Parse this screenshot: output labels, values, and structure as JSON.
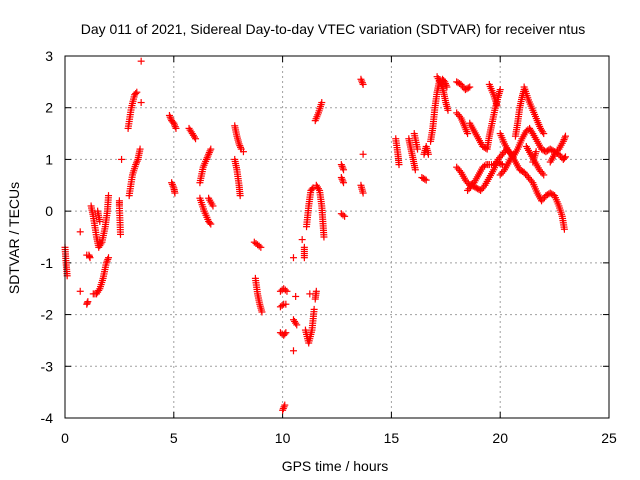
{
  "chart_data": {
    "type": "scatter",
    "title": "Day 011 of 2021, Sidereal Day-to-day VTEC variation (SDTVAR) for receiver ntus",
    "xlabel": "GPS time / hours",
    "ylabel": "SDTVAR / TECUs",
    "xlim": [
      0,
      25
    ],
    "ylim": [
      -4,
      3
    ],
    "xticks": [
      0,
      5,
      10,
      15,
      20,
      25
    ],
    "yticks": [
      -4,
      -3,
      -2,
      -1,
      0,
      1,
      2,
      3
    ],
    "xtick_labels": [
      "0",
      "5",
      "10",
      "15",
      "20",
      "25"
    ],
    "ytick_labels": [
      "-4",
      "-3",
      "-2",
      "-1",
      "0",
      "1",
      "2",
      "3"
    ],
    "grid": true,
    "marker": "+",
    "color": "#ff0000",
    "series": [
      {
        "name": "SDTVAR",
        "tracks": [
          [
            [
              0.0,
              -0.7
            ],
            [
              0.05,
              -1.0
            ],
            [
              0.1,
              -1.25
            ]
          ],
          [
            [
              0.7,
              -0.4
            ]
          ],
          [
            [
              0.7,
              -1.55
            ]
          ],
          [
            [
              1.0,
              -0.85
            ],
            [
              1.1,
              -0.85
            ],
            [
              1.15,
              -0.9
            ]
          ],
          [
            [
              1.0,
              -1.8
            ],
            [
              1.05,
              -1.75
            ]
          ],
          [
            [
              1.2,
              0.1
            ],
            [
              1.3,
              -0.1
            ],
            [
              1.45,
              -0.5
            ],
            [
              1.55,
              -0.7
            ],
            [
              1.7,
              -0.6
            ],
            [
              1.85,
              -0.3
            ],
            [
              1.95,
              0.0
            ],
            [
              2.0,
              0.3
            ]
          ],
          [
            [
              1.3,
              -1.6
            ],
            [
              1.45,
              -1.6
            ],
            [
              1.6,
              -1.5
            ],
            [
              1.75,
              -1.3
            ],
            [
              1.9,
              -1.0
            ],
            [
              2.0,
              -0.9
            ]
          ],
          [
            [
              1.5,
              0.0
            ],
            [
              1.6,
              -0.2
            ]
          ],
          [
            [
              2.5,
              0.2
            ],
            [
              2.5,
              0.1
            ],
            [
              2.55,
              -0.45
            ]
          ],
          [
            [
              2.6,
              1.0
            ]
          ],
          [
            [
              2.95,
              0.3
            ],
            [
              3.1,
              0.7
            ],
            [
              3.25,
              0.9
            ],
            [
              3.35,
              1.0
            ],
            [
              3.45,
              1.2
            ]
          ],
          [
            [
              2.9,
              1.6
            ],
            [
              3.05,
              2.0
            ],
            [
              3.2,
              2.25
            ],
            [
              3.3,
              2.3
            ]
          ],
          [
            [
              3.5,
              2.1
            ]
          ],
          [
            [
              3.5,
              2.9
            ]
          ],
          [
            [
              4.8,
              1.85
            ],
            [
              4.9,
              1.75
            ],
            [
              5.0,
              1.7
            ],
            [
              5.1,
              1.6
            ]
          ],
          [
            [
              4.9,
              0.55
            ],
            [
              5.0,
              0.45
            ],
            [
              5.05,
              0.35
            ]
          ],
          [
            [
              5.7,
              1.6
            ],
            [
              5.85,
              1.5
            ],
            [
              6.0,
              1.4
            ]
          ],
          [
            [
              6.2,
              0.55
            ],
            [
              6.35,
              0.85
            ],
            [
              6.5,
              1.0
            ],
            [
              6.6,
              1.1
            ],
            [
              6.7,
              1.2
            ]
          ],
          [
            [
              6.2,
              0.25
            ],
            [
              6.4,
              0.0
            ],
            [
              6.6,
              -0.2
            ],
            [
              6.7,
              -0.25
            ]
          ],
          [
            [
              6.6,
              0.25
            ],
            [
              6.8,
              0.1
            ]
          ],
          [
            [
              7.8,
              1.65
            ],
            [
              7.9,
              1.45
            ],
            [
              8.0,
              1.3
            ],
            [
              8.1,
              1.2
            ]
          ],
          [
            [
              7.8,
              1.0
            ],
            [
              7.9,
              0.8
            ],
            [
              8.0,
              0.5
            ],
            [
              8.05,
              0.3
            ]
          ],
          [
            [
              8.2,
              1.15
            ]
          ],
          [
            [
              8.7,
              -0.6
            ],
            [
              8.85,
              -0.65
            ],
            [
              9.0,
              -0.7
            ]
          ],
          [
            [
              8.75,
              -1.3
            ],
            [
              8.85,
              -1.6
            ],
            [
              8.95,
              -1.8
            ],
            [
              9.05,
              -1.95
            ]
          ],
          [
            [
              9.9,
              -1.55
            ],
            [
              10.05,
              -1.5
            ],
            [
              10.2,
              -1.55
            ]
          ],
          [
            [
              9.9,
              -1.85
            ],
            [
              10.05,
              -1.8
            ],
            [
              10.15,
              -1.8
            ]
          ],
          [
            [
              9.9,
              -2.35
            ],
            [
              10.05,
              -2.4
            ],
            [
              10.15,
              -2.35
            ]
          ],
          [
            [
              10.0,
              -3.85
            ],
            [
              10.1,
              -3.75
            ]
          ],
          [
            [
              10.6,
              -1.65
            ]
          ],
          [
            [
              10.5,
              -2.7
            ]
          ],
          [
            [
              10.5,
              -0.9
            ]
          ],
          [
            [
              10.5,
              -2.1
            ],
            [
              10.65,
              -2.2
            ]
          ],
          [
            [
              10.9,
              -0.55
            ]
          ],
          [
            [
              11.0,
              -0.7
            ],
            [
              11.0,
              -0.9
            ]
          ],
          [
            [
              11.05,
              -2.3
            ],
            [
              11.2,
              -2.55
            ],
            [
              11.35,
              -2.3
            ],
            [
              11.45,
              -1.9
            ]
          ],
          [
            [
              11.1,
              -0.3
            ],
            [
              11.2,
              0.1
            ],
            [
              11.3,
              0.4
            ],
            [
              11.4,
              0.45
            ]
          ],
          [
            [
              11.25,
              -1.6
            ]
          ],
          [
            [
              11.5,
              -1.7
            ],
            [
              11.55,
              -1.55
            ]
          ],
          [
            [
              11.55,
              0.5
            ],
            [
              11.7,
              0.4
            ],
            [
              11.8,
              0.1
            ],
            [
              11.85,
              -0.2
            ],
            [
              11.9,
              -0.5
            ]
          ],
          [
            [
              11.5,
              1.75
            ],
            [
              11.65,
              1.9
            ],
            [
              11.8,
              2.1
            ]
          ],
          [
            [
              12.7,
              0.9
            ],
            [
              12.8,
              0.8
            ]
          ],
          [
            [
              12.7,
              0.65
            ],
            [
              12.8,
              0.55
            ]
          ],
          [
            [
              12.7,
              -0.05
            ],
            [
              12.85,
              -0.1
            ]
          ],
          [
            [
              13.6,
              2.55
            ],
            [
              13.7,
              2.45
            ]
          ],
          [
            [
              13.6,
              0.5
            ],
            [
              13.7,
              0.35
            ]
          ],
          [
            [
              13.7,
              1.1
            ]
          ],
          [
            [
              15.2,
              1.4
            ],
            [
              15.3,
              1.1
            ],
            [
              15.35,
              0.9
            ]
          ],
          [
            [
              15.8,
              1.4
            ],
            [
              15.9,
              1.2
            ],
            [
              16.0,
              1.0
            ],
            [
              16.1,
              0.8
            ]
          ],
          [
            [
              16.05,
              1.5
            ],
            [
              16.2,
              1.2
            ]
          ],
          [
            [
              16.4,
              0.65
            ],
            [
              16.6,
              0.6
            ]
          ],
          [
            [
              16.5,
              1.1
            ],
            [
              16.6,
              1.25
            ],
            [
              16.7,
              1.1
            ]
          ],
          [
            [
              16.8,
              1.35
            ],
            [
              16.9,
              1.6
            ],
            [
              17.0,
              2.0
            ],
            [
              17.1,
              2.3
            ],
            [
              17.2,
              2.5
            ],
            [
              17.35,
              2.55
            ],
            [
              17.45,
              2.5
            ],
            [
              17.55,
              2.4
            ]
          ],
          [
            [
              17.1,
              2.6
            ],
            [
              17.3,
              2.45
            ],
            [
              17.4,
              2.3
            ],
            [
              17.5,
              2.1
            ],
            [
              17.6,
              1.95
            ]
          ],
          [
            [
              18.0,
              2.5
            ],
            [
              18.2,
              2.45
            ],
            [
              18.4,
              2.35
            ],
            [
              18.6,
              2.4
            ]
          ],
          [
            [
              18.0,
              1.9
            ],
            [
              18.2,
              1.8
            ],
            [
              18.35,
              1.65
            ],
            [
              18.5,
              1.5
            ]
          ],
          [
            [
              18.0,
              0.85
            ],
            [
              18.2,
              0.75
            ],
            [
              18.4,
              0.6
            ],
            [
              18.6,
              0.5
            ],
            [
              18.8,
              0.55
            ],
            [
              19.0,
              0.7
            ],
            [
              19.2,
              0.85
            ],
            [
              19.35,
              0.9
            ],
            [
              19.5,
              0.9
            ],
            [
              19.7,
              0.9
            ],
            [
              19.9,
              0.95
            ],
            [
              20.1,
              0.9
            ]
          ],
          [
            [
              18.5,
              0.4
            ],
            [
              18.7,
              0.5
            ],
            [
              18.9,
              0.45
            ],
            [
              19.1,
              0.4
            ],
            [
              19.3,
              0.5
            ],
            [
              19.5,
              0.65
            ],
            [
              19.7,
              0.8
            ],
            [
              19.9,
              1.0
            ],
            [
              20.1,
              1.1
            ],
            [
              20.3,
              1.2
            ],
            [
              20.5,
              1.1
            ],
            [
              20.7,
              0.95
            ],
            [
              20.9,
              0.8
            ],
            [
              21.1,
              0.75
            ],
            [
              21.3,
              0.65
            ],
            [
              21.5,
              0.55
            ],
            [
              21.7,
              0.35
            ],
            [
              21.9,
              0.2
            ],
            [
              22.1,
              0.3
            ],
            [
              22.3,
              0.35
            ],
            [
              22.5,
              0.3
            ],
            [
              22.7,
              0.1
            ],
            [
              22.85,
              -0.1
            ],
            [
              22.95,
              -0.35
            ]
          ],
          [
            [
              18.6,
              1.7
            ],
            [
              18.8,
              1.55
            ],
            [
              19.0,
              1.4
            ],
            [
              19.2,
              1.25
            ],
            [
              19.4,
              1.2
            ],
            [
              19.5,
              1.45
            ],
            [
              19.6,
              1.65
            ],
            [
              19.75,
              1.95
            ],
            [
              19.9,
              2.2
            ],
            [
              20.0,
              2.35
            ]
          ],
          [
            [
              19.5,
              2.45
            ],
            [
              19.7,
              2.25
            ],
            [
              19.85,
              2.05
            ]
          ],
          [
            [
              20.0,
              1.5
            ],
            [
              20.2,
              1.3
            ],
            [
              20.4,
              1.15
            ],
            [
              20.6,
              1.05
            ],
            [
              20.8,
              1.2
            ],
            [
              21.0,
              1.4
            ],
            [
              21.2,
              1.55
            ],
            [
              21.35,
              1.6
            ],
            [
              21.5,
              1.5
            ],
            [
              21.7,
              1.35
            ],
            [
              21.9,
              1.2
            ],
            [
              22.1,
              1.15
            ],
            [
              22.3,
              1.2
            ],
            [
              22.5,
              1.15
            ],
            [
              22.7,
              1.1
            ],
            [
              22.9,
              1.0
            ],
            [
              23.0,
              1.05
            ]
          ],
          [
            [
              20.0,
              0.7
            ],
            [
              20.2,
              0.8
            ],
            [
              20.4,
              0.95
            ],
            [
              20.6,
              1.1
            ]
          ],
          [
            [
              20.7,
              1.45
            ],
            [
              20.8,
              1.7
            ],
            [
              20.9,
              2.0
            ],
            [
              21.0,
              2.2
            ],
            [
              21.1,
              2.35
            ]
          ],
          [
            [
              21.1,
              2.4
            ],
            [
              21.3,
              2.15
            ],
            [
              21.5,
              1.95
            ],
            [
              21.7,
              1.75
            ],
            [
              21.85,
              1.6
            ],
            [
              22.0,
              1.5
            ]
          ],
          [
            [
              21.5,
              0.95
            ],
            [
              21.65,
              1.15
            ]
          ],
          [
            [
              22.3,
              0.95
            ],
            [
              22.5,
              1.1
            ],
            [
              22.7,
              1.2
            ],
            [
              22.9,
              1.35
            ],
            [
              23.0,
              1.45
            ]
          ],
          [
            [
              21.2,
              1.25
            ],
            [
              21.4,
              1.1
            ],
            [
              21.6,
              0.95
            ],
            [
              21.8,
              0.8
            ],
            [
              22.0,
              0.7
            ]
          ]
        ]
      }
    ]
  }
}
